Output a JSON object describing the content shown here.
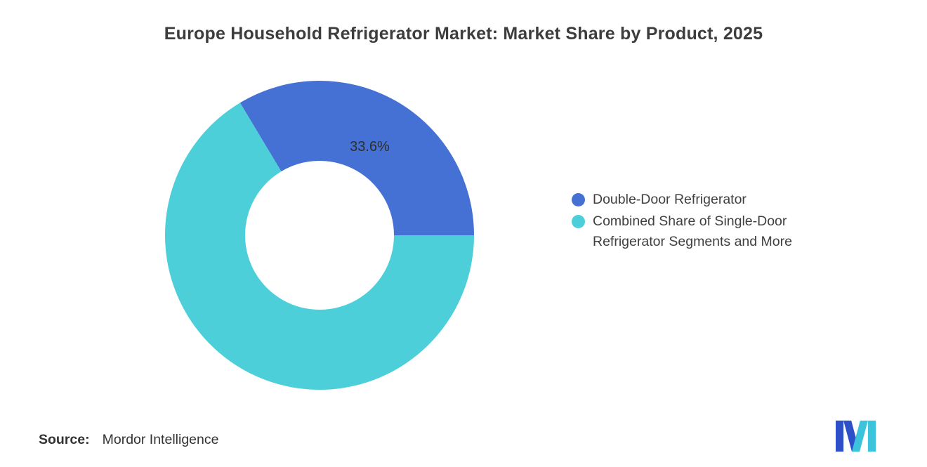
{
  "title": "Europe Household Refrigerator Market: Market Share by Product, 2025",
  "chart_data": {
    "type": "pie",
    "subtype": "donut",
    "title": "Europe Household Refrigerator Market: Market Share by Product, 2025",
    "slices": [
      {
        "label": "Double-Door Refrigerator",
        "value": 33.6,
        "display_label": "33.6%",
        "color": "#4571D4"
      },
      {
        "label": "Combined Share of Single-Door Refrigerator Segments and More",
        "value": 66.4,
        "display_label": "",
        "color": "#4DCFDA"
      }
    ],
    "rotation_deg": -30.96,
    "donut_hole_ratio": 0.48,
    "legend_position": "right",
    "background": "#FFFFFF"
  },
  "source": {
    "label": "Source:",
    "value": "Mordor Intelligence"
  },
  "logo": {
    "name": "Mordor Intelligence logo",
    "blue": "#2D50C8",
    "teal": "#3BC4DC"
  },
  "colors": {
    "title_text": "#3D3D3D",
    "legend_text": "#404040",
    "slice_label_text": "#2E2E2E"
  }
}
